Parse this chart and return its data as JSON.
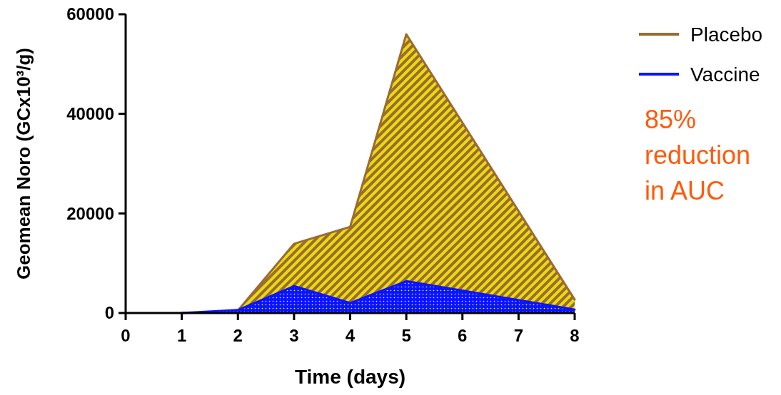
{
  "chart_data": {
    "type": "area",
    "xlabel": "Time (days)",
    "ylabel": "Geomean Noro (GCx10³/g)",
    "xlim": [
      0,
      8
    ],
    "xticks": [
      0,
      1,
      2,
      3,
      4,
      5,
      6,
      7,
      8
    ],
    "ylim": [
      0,
      60000
    ],
    "yticks": [
      0,
      20000,
      40000,
      60000
    ],
    "series": [
      {
        "name": "Placebo",
        "color": "#9c6b30",
        "x": [
          2,
          3,
          4,
          5,
          8
        ],
        "values": [
          500,
          13900,
          17300,
          56000,
          2700
        ]
      },
      {
        "name": "Vaccine",
        "color": "#0a14ff",
        "x": [
          1,
          2,
          3,
          4,
          5,
          8
        ],
        "values": [
          0,
          600,
          5400,
          2000,
          6400,
          700
        ]
      }
    ],
    "legend": "top right",
    "grid": false,
    "annotations": [
      "85% reduction in AUC"
    ]
  }
}
